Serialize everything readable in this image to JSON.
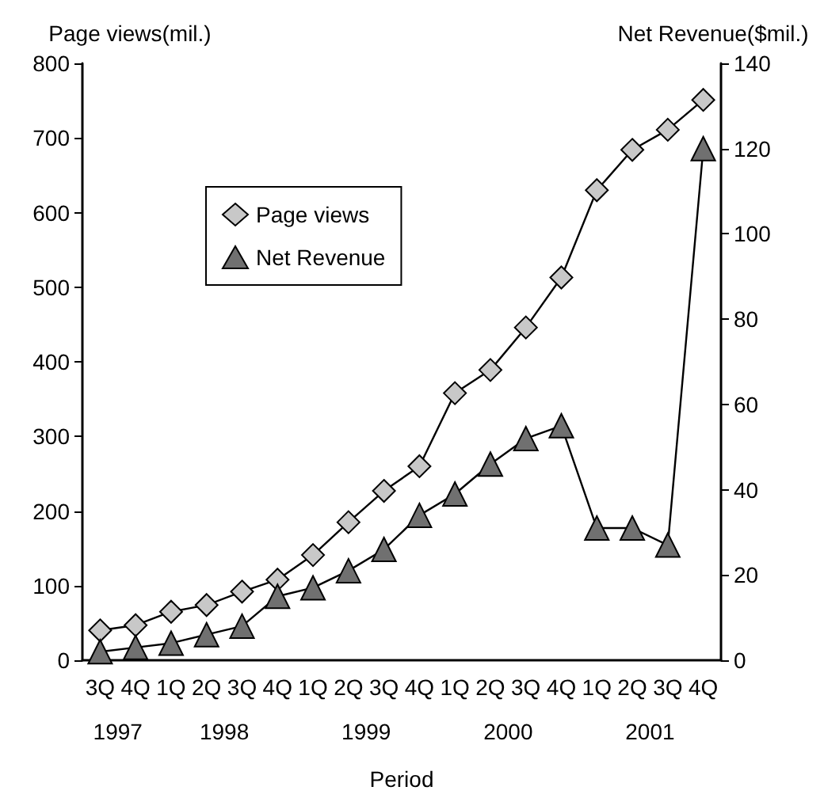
{
  "chart_data": {
    "type": "line",
    "xlabel": "Period",
    "ylabel": "Page views(mil.)",
    "y2label": "Net Revenue($mil.)",
    "categories": [
      "3Q",
      "4Q",
      "1Q",
      "2Q",
      "3Q",
      "4Q",
      "1Q",
      "2Q",
      "3Q",
      "4Q",
      "1Q",
      "2Q",
      "3Q",
      "4Q",
      "1Q",
      "2Q",
      "3Q",
      "4Q"
    ],
    "series": [
      {
        "name": "Page views",
        "color": "#c8c8c8",
        "marker": "diamond",
        "values": [
          40,
          47,
          65,
          74,
          92,
          108,
          141,
          185,
          227,
          260,
          358,
          389,
          446,
          513,
          630,
          684,
          711,
          751
        ]
      },
      {
        "name": "Net Revenue",
        "color": "#707070",
        "marker": "triangle",
        "axis": "y2",
        "values": [
          2,
          3,
          4,
          6,
          8,
          15,
          17,
          21,
          26,
          34,
          39,
          46,
          52,
          55,
          31,
          31,
          27,
          120
        ]
      }
    ],
    "ylim": [
      0,
      800
    ],
    "yticks": [
      0,
      100,
      200,
      300,
      400,
      500,
      600,
      700,
      800
    ],
    "y2lim": [
      0,
      140
    ],
    "y2ticks": [
      0,
      20,
      40,
      60,
      80,
      100,
      120,
      140
    ],
    "annotations": [
      "1997",
      "1998",
      "1999",
      "2000",
      "2001"
    ],
    "grid": false,
    "legend": "top left"
  }
}
